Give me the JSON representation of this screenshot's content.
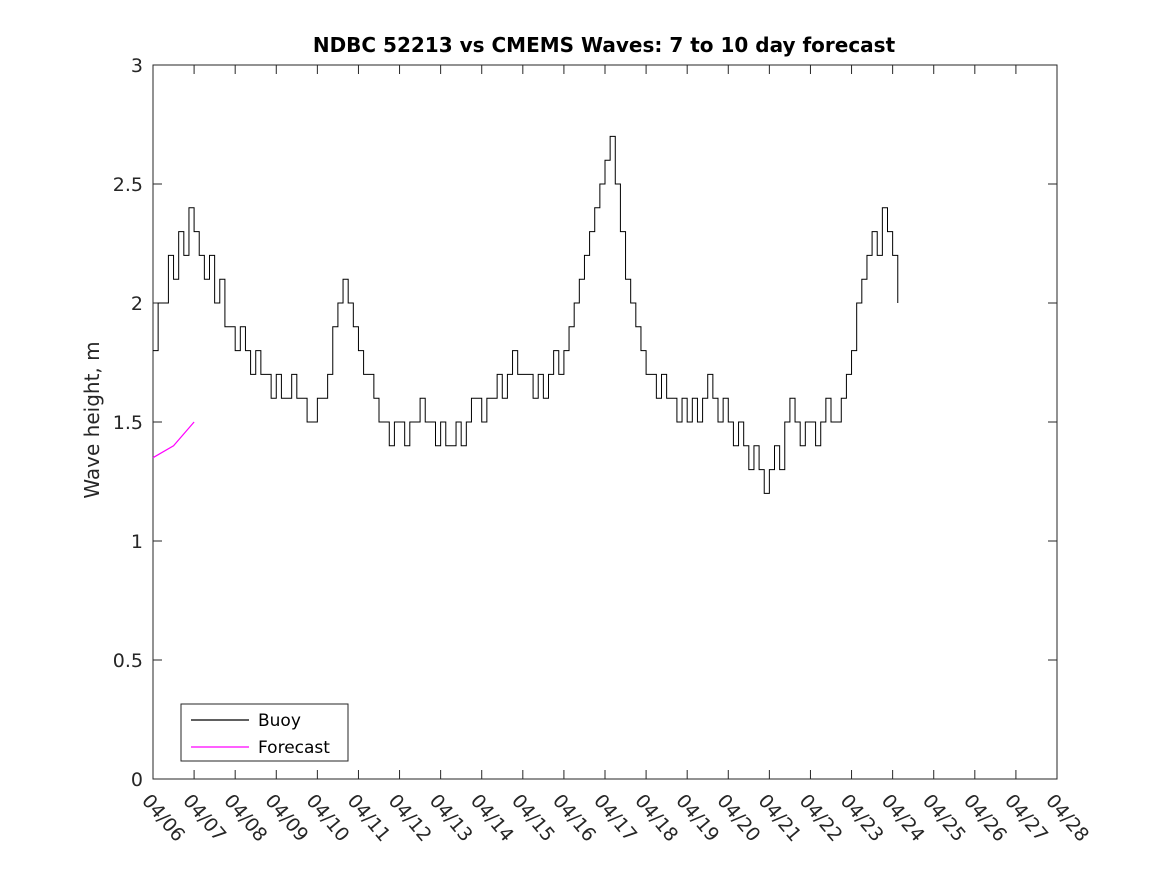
{
  "chart_data": {
    "type": "line",
    "title": "NDBC 52213 vs CMEMS Waves: 7 to 10 day forecast",
    "xlabel": "",
    "ylabel": "Wave height, m",
    "xlim": [
      "04/06",
      "04/28"
    ],
    "ylim": [
      0,
      3
    ],
    "x_ticks": [
      "04/06",
      "04/07",
      "04/08",
      "04/09",
      "04/10",
      "04/11",
      "04/12",
      "04/13",
      "04/14",
      "04/15",
      "04/16",
      "04/17",
      "04/18",
      "04/19",
      "04/20",
      "04/21",
      "04/22",
      "04/23",
      "04/24",
      "04/25",
      "04/26",
      "04/27",
      "04/28"
    ],
    "y_ticks": [
      "0",
      "0.5",
      "1",
      "1.5",
      "2",
      "2.5",
      "3"
    ],
    "grid": false,
    "legend": {
      "placement": "bottom-left",
      "entries": [
        "Buoy",
        "Forecast"
      ]
    },
    "colors": {
      "buoy": "#000000",
      "forecast": "#ff00ff",
      "axes": "#262626"
    },
    "buoy": {
      "name": "Buoy",
      "points": [
        [
          "04/06 00:00",
          1.8
        ],
        [
          "04/06 03:00",
          2.0
        ],
        [
          "04/06 06:00",
          2.0
        ],
        [
          "04/06 09:00",
          2.2
        ],
        [
          "04/06 12:00",
          2.1
        ],
        [
          "04/06 15:00",
          2.3
        ],
        [
          "04/06 18:00",
          2.2
        ],
        [
          "04/06 21:00",
          2.4
        ],
        [
          "04/07 00:00",
          2.3
        ],
        [
          "04/07 03:00",
          2.2
        ],
        [
          "04/07 06:00",
          2.1
        ],
        [
          "04/07 09:00",
          2.2
        ],
        [
          "04/07 12:00",
          2.0
        ],
        [
          "04/07 15:00",
          2.1
        ],
        [
          "04/07 18:00",
          1.9
        ],
        [
          "04/07 21:00",
          1.9
        ],
        [
          "04/08 00:00",
          1.8
        ],
        [
          "04/08 03:00",
          1.9
        ],
        [
          "04/08 06:00",
          1.8
        ],
        [
          "04/08 09:00",
          1.7
        ],
        [
          "04/08 12:00",
          1.8
        ],
        [
          "04/08 15:00",
          1.7
        ],
        [
          "04/08 18:00",
          1.7
        ],
        [
          "04/08 21:00",
          1.6
        ],
        [
          "04/09 00:00",
          1.7
        ],
        [
          "04/09 03:00",
          1.6
        ],
        [
          "04/09 06:00",
          1.6
        ],
        [
          "04/09 09:00",
          1.7
        ],
        [
          "04/09 12:00",
          1.6
        ],
        [
          "04/09 15:00",
          1.6
        ],
        [
          "04/09 18:00",
          1.5
        ],
        [
          "04/09 21:00",
          1.5
        ],
        [
          "04/10 00:00",
          1.6
        ],
        [
          "04/10 03:00",
          1.6
        ],
        [
          "04/10 06:00",
          1.7
        ],
        [
          "04/10 09:00",
          1.9
        ],
        [
          "04/10 12:00",
          2.0
        ],
        [
          "04/10 15:00",
          2.1
        ],
        [
          "04/10 18:00",
          2.0
        ],
        [
          "04/10 21:00",
          1.9
        ],
        [
          "04/11 00:00",
          1.8
        ],
        [
          "04/11 03:00",
          1.7
        ],
        [
          "04/11 06:00",
          1.7
        ],
        [
          "04/11 09:00",
          1.6
        ],
        [
          "04/11 12:00",
          1.5
        ],
        [
          "04/11 15:00",
          1.5
        ],
        [
          "04/11 18:00",
          1.4
        ],
        [
          "04/11 21:00",
          1.5
        ],
        [
          "04/12 00:00",
          1.5
        ],
        [
          "04/12 03:00",
          1.4
        ],
        [
          "04/12 06:00",
          1.5
        ],
        [
          "04/12 09:00",
          1.5
        ],
        [
          "04/12 12:00",
          1.6
        ],
        [
          "04/12 15:00",
          1.5
        ],
        [
          "04/12 18:00",
          1.5
        ],
        [
          "04/12 21:00",
          1.4
        ],
        [
          "04/13 00:00",
          1.5
        ],
        [
          "04/13 03:00",
          1.4
        ],
        [
          "04/13 06:00",
          1.4
        ],
        [
          "04/13 09:00",
          1.5
        ],
        [
          "04/13 12:00",
          1.4
        ],
        [
          "04/13 15:00",
          1.5
        ],
        [
          "04/13 18:00",
          1.6
        ],
        [
          "04/13 21:00",
          1.6
        ],
        [
          "04/14 00:00",
          1.5
        ],
        [
          "04/14 03:00",
          1.6
        ],
        [
          "04/14 06:00",
          1.6
        ],
        [
          "04/14 09:00",
          1.7
        ],
        [
          "04/14 12:00",
          1.6
        ],
        [
          "04/14 15:00",
          1.7
        ],
        [
          "04/14 18:00",
          1.8
        ],
        [
          "04/14 21:00",
          1.7
        ],
        [
          "04/15 00:00",
          1.7
        ],
        [
          "04/15 03:00",
          1.7
        ],
        [
          "04/15 06:00",
          1.6
        ],
        [
          "04/15 09:00",
          1.7
        ],
        [
          "04/15 12:00",
          1.6
        ],
        [
          "04/15 15:00",
          1.7
        ],
        [
          "04/15 18:00",
          1.8
        ],
        [
          "04/15 21:00",
          1.7
        ],
        [
          "04/16 00:00",
          1.8
        ],
        [
          "04/16 03:00",
          1.9
        ],
        [
          "04/16 06:00",
          2.0
        ],
        [
          "04/16 09:00",
          2.1
        ],
        [
          "04/16 12:00",
          2.2
        ],
        [
          "04/16 15:00",
          2.3
        ],
        [
          "04/16 18:00",
          2.4
        ],
        [
          "04/16 21:00",
          2.5
        ],
        [
          "04/17 00:00",
          2.6
        ],
        [
          "04/17 03:00",
          2.7
        ],
        [
          "04/17 06:00",
          2.5
        ],
        [
          "04/17 09:00",
          2.3
        ],
        [
          "04/17 12:00",
          2.1
        ],
        [
          "04/17 15:00",
          2.0
        ],
        [
          "04/17 18:00",
          1.9
        ],
        [
          "04/17 21:00",
          1.8
        ],
        [
          "04/18 00:00",
          1.7
        ],
        [
          "04/18 03:00",
          1.7
        ],
        [
          "04/18 06:00",
          1.6
        ],
        [
          "04/18 09:00",
          1.7
        ],
        [
          "04/18 12:00",
          1.6
        ],
        [
          "04/18 15:00",
          1.6
        ],
        [
          "04/18 18:00",
          1.5
        ],
        [
          "04/18 21:00",
          1.6
        ],
        [
          "04/19 00:00",
          1.5
        ],
        [
          "04/19 03:00",
          1.6
        ],
        [
          "04/19 06:00",
          1.5
        ],
        [
          "04/19 09:00",
          1.6
        ],
        [
          "04/19 12:00",
          1.7
        ],
        [
          "04/19 15:00",
          1.6
        ],
        [
          "04/19 18:00",
          1.5
        ],
        [
          "04/19 21:00",
          1.6
        ],
        [
          "04/20 00:00",
          1.5
        ],
        [
          "04/20 03:00",
          1.4
        ],
        [
          "04/20 06:00",
          1.5
        ],
        [
          "04/20 09:00",
          1.4
        ],
        [
          "04/20 12:00",
          1.3
        ],
        [
          "04/20 15:00",
          1.4
        ],
        [
          "04/20 18:00",
          1.3
        ],
        [
          "04/20 21:00",
          1.2
        ],
        [
          "04/21 00:00",
          1.3
        ],
        [
          "04/21 03:00",
          1.4
        ],
        [
          "04/21 06:00",
          1.3
        ],
        [
          "04/21 09:00",
          1.5
        ],
        [
          "04/21 12:00",
          1.6
        ],
        [
          "04/21 15:00",
          1.5
        ],
        [
          "04/21 18:00",
          1.4
        ],
        [
          "04/21 21:00",
          1.5
        ],
        [
          "04/22 00:00",
          1.5
        ],
        [
          "04/22 03:00",
          1.4
        ],
        [
          "04/22 06:00",
          1.5
        ],
        [
          "04/22 09:00",
          1.6
        ],
        [
          "04/22 12:00",
          1.5
        ],
        [
          "04/22 15:00",
          1.5
        ],
        [
          "04/22 18:00",
          1.6
        ],
        [
          "04/22 21:00",
          1.7
        ],
        [
          "04/23 00:00",
          1.8
        ],
        [
          "04/23 03:00",
          2.0
        ],
        [
          "04/23 06:00",
          2.1
        ],
        [
          "04/23 09:00",
          2.2
        ],
        [
          "04/23 12:00",
          2.3
        ],
        [
          "04/23 15:00",
          2.2
        ],
        [
          "04/23 18:00",
          2.4
        ],
        [
          "04/23 21:00",
          2.3
        ],
        [
          "04/24 00:00",
          2.2
        ],
        [
          "04/24 03:00",
          2.0
        ]
      ]
    },
    "forecast": {
      "name": "Forecast",
      "segments": [
        [
          [
            "04/06 00:00",
            1.35
          ],
          [
            "04/06 12:00",
            1.4
          ],
          [
            "04/07 00:00",
            1.5
          ]
        ]
      ],
      "markers": []
    }
  }
}
